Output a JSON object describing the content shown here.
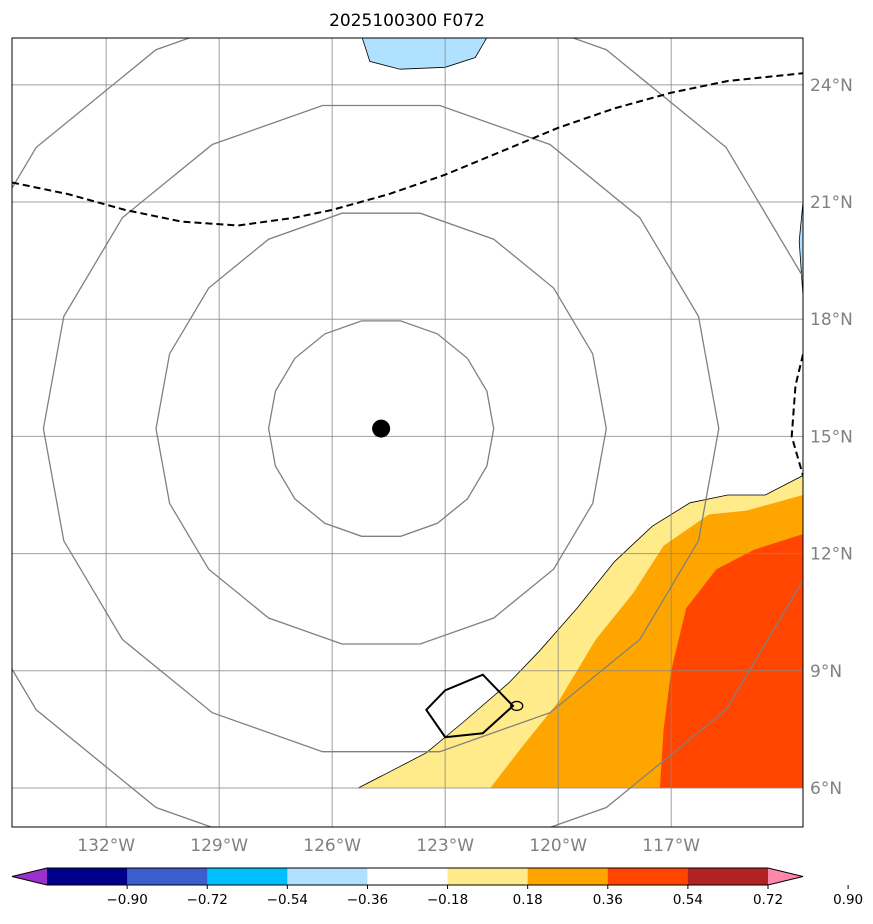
{
  "title": "2025100300 F072",
  "map": {
    "lon_range": [
      -134.5,
      -113.5
    ],
    "lat_range": [
      5.0,
      25.2
    ],
    "lon_ticks": [
      {
        "value": -132,
        "label": "132°W"
      },
      {
        "value": -129,
        "label": "129°W"
      },
      {
        "value": -126,
        "label": "126°W"
      },
      {
        "value": -123,
        "label": "123°W"
      },
      {
        "value": -120,
        "label": "120°W"
      },
      {
        "value": -117,
        "label": "117°W"
      }
    ],
    "lat_ticks": [
      {
        "value": 24,
        "label": "24°N"
      },
      {
        "value": 21,
        "label": "21°N"
      },
      {
        "value": 18,
        "label": "18°N"
      },
      {
        "value": 15,
        "label": "15°N"
      },
      {
        "value": 12,
        "label": "12°N"
      },
      {
        "value": 9,
        "label": "9°N"
      },
      {
        "value": 6,
        "label": "6°N"
      }
    ],
    "grid": true,
    "center_marker": {
      "lon": -124.7,
      "lat": 15.2
    },
    "range_rings_deg": [
      2.8,
      5.6,
      8.4,
      11.2
    ],
    "dashed_line": [
      [
        -134.5,
        21.5
      ],
      [
        -133,
        21.2
      ],
      [
        -131.5,
        20.8
      ],
      [
        -130,
        20.5
      ],
      [
        -128.5,
        20.4
      ],
      [
        -127,
        20.6
      ],
      [
        -126,
        20.8
      ],
      [
        -124.5,
        21.2
      ],
      [
        -123,
        21.7
      ],
      [
        -121.5,
        22.3
      ],
      [
        -120,
        22.9
      ],
      [
        -118.5,
        23.4
      ],
      [
        -117,
        23.8
      ],
      [
        -115.5,
        24.1
      ],
      [
        -113.5,
        24.3
      ]
    ],
    "dashed_line_east": [
      [
        -113.5,
        17.1
      ],
      [
        -113.7,
        16.3
      ],
      [
        -113.8,
        15.0
      ],
      [
        -113.5,
        14.0
      ]
    ],
    "warm_fill": {
      "pale_yellow": [
        [
          -125.3,
          6.0
        ],
        [
          -124.5,
          6.4
        ],
        [
          -123.5,
          6.9
        ],
        [
          -122.5,
          7.7
        ],
        [
          -121.3,
          8.7
        ],
        [
          -120.5,
          9.5
        ],
        [
          -119.5,
          10.6
        ],
        [
          -118.5,
          11.8
        ],
        [
          -117.5,
          12.7
        ],
        [
          -116.5,
          13.3
        ],
        [
          -115.5,
          13.5
        ],
        [
          -114.5,
          13.5
        ],
        [
          -113.5,
          14.0
        ],
        [
          -113.5,
          6.0
        ]
      ],
      "orange": [
        [
          -121.8,
          6.0
        ],
        [
          -121,
          7.0
        ],
        [
          -120,
          8.2
        ],
        [
          -119,
          9.8
        ],
        [
          -118,
          11.0
        ],
        [
          -117.2,
          12.2
        ],
        [
          -116,
          13.0
        ],
        [
          -115,
          13.1
        ],
        [
          -113.5,
          13.5
        ],
        [
          -113.5,
          6.0
        ]
      ],
      "red_orange": [
        [
          -117.3,
          6.0
        ],
        [
          -117.2,
          7.5
        ],
        [
          -117.0,
          9.0
        ],
        [
          -116.6,
          10.6
        ],
        [
          -115.8,
          11.6
        ],
        [
          -114.8,
          12.1
        ],
        [
          -113.5,
          12.5
        ],
        [
          -113.5,
          6.0
        ]
      ]
    },
    "cool_fill_north": [
      [
        -125.2,
        25.2
      ],
      [
        -125,
        24.6
      ],
      [
        -124.2,
        24.4
      ],
      [
        -123,
        24.45
      ],
      [
        -122.2,
        24.7
      ],
      [
        -121.9,
        25.2
      ]
    ],
    "cool_fill_east": [
      [
        -113.5,
        21.0
      ],
      [
        -113.6,
        20.0
      ],
      [
        -113.5,
        18.6
      ]
    ],
    "small_polygon": [
      [
        -123.5,
        8.0
      ],
      [
        -123,
        8.5
      ],
      [
        -122,
        8.9
      ],
      [
        -121.2,
        8.1
      ],
      [
        -122,
        7.4
      ],
      [
        -123,
        7.3
      ]
    ]
  },
  "colorbar": {
    "colors": [
      "#9932cc",
      "#00008b",
      "#3a5fcd",
      "#00bfff",
      "#b0e2ff",
      "#ffffff",
      "#ffeb8a",
      "#ffa500",
      "#ff4500",
      "#b22222",
      "#ff88aa"
    ],
    "tick_labels": [
      "−0.90",
      "−0.72",
      "−0.54",
      "−0.36",
      "−0.18",
      "0.18",
      "0.36",
      "0.54",
      "0.72",
      "0.90"
    ]
  }
}
